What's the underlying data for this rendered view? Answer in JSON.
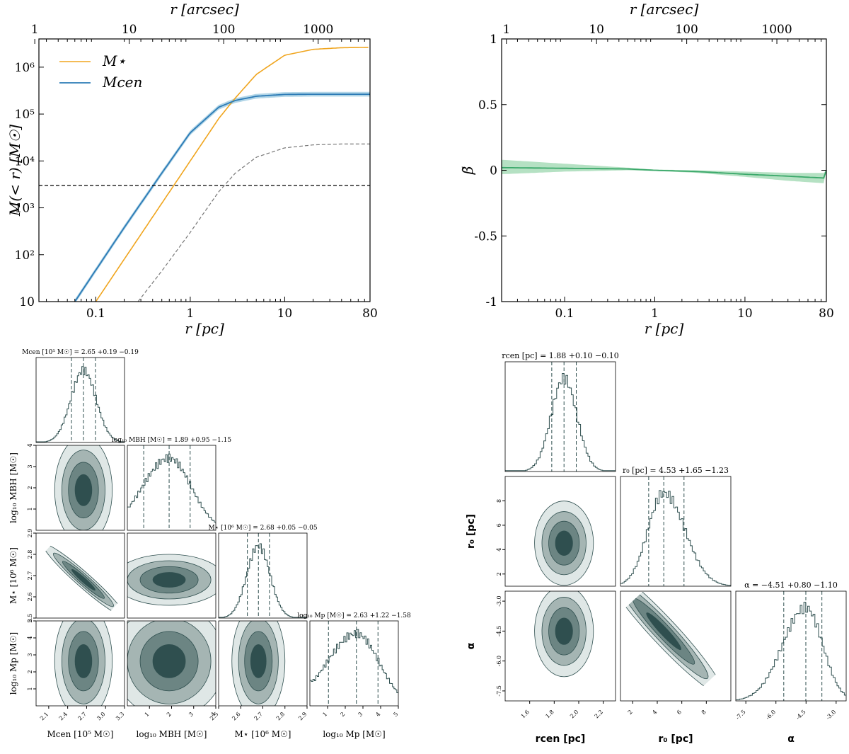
{
  "colors": {
    "stellar": "#f0a51e",
    "central": "#2c7bb6",
    "central_band": "#9ecae1",
    "beta_line": "#3aa86a",
    "beta_band": "#a8dcb9",
    "corner_dark": "#2f4f4f",
    "corner_fill": [
      "#dfe7e6",
      "#a5b5b3",
      "#6c8583",
      "#2f4f4f"
    ]
  },
  "chart_data": [
    {
      "id": "mass_profile",
      "type": "line",
      "xlabel": "r [pc]",
      "xlabel_top": "r [arcsec]",
      "ylabel": "M(< r) [M☉]",
      "xscale": "log",
      "yscale": "log",
      "xlim": [
        0.025,
        80
      ],
      "ylim": [
        10,
        4000000
      ],
      "x_ticks": [
        "0.1",
        "1",
        "10",
        "80"
      ],
      "x_tick_values": [
        0.1,
        1,
        10,
        80
      ],
      "top_ticks": [
        "1",
        "10",
        "100",
        "1000"
      ],
      "top_tick_values_pc": [
        0.0226,
        0.226,
        2.26,
        22.6
      ],
      "y_ticks": [
        "10",
        "10²",
        "10³",
        "10⁴",
        "10⁵",
        "10⁶"
      ],
      "y_tick_values": [
        10,
        100,
        1000,
        10000,
        100000,
        1000000
      ],
      "legend": [
        "M⋆",
        "Mcen"
      ],
      "legend_position": "top-left",
      "series": [
        {
          "name": "M⋆",
          "x": [
            0.1,
            0.2,
            0.5,
            1,
            2,
            3,
            5,
            10,
            20,
            40,
            80
          ],
          "y": [
            10,
            80,
            1250,
            10000,
            80000,
            220000,
            700000,
            1800000,
            2400000,
            2600000,
            2650000
          ]
        },
        {
          "name": "Mcen",
          "x": [
            0.06,
            0.1,
            0.2,
            0.5,
            1,
            2,
            3,
            5,
            10,
            20,
            40,
            80
          ],
          "y": [
            10,
            47,
            380,
            5500,
            40000,
            140000,
            195000,
            240000,
            262000,
            265000,
            265000,
            265000
          ]
        },
        {
          "name": "M_BH",
          "x": [
            0.025,
            80
          ],
          "y": [
            3000,
            3000
          ]
        },
        {
          "name": "M_p",
          "x": [
            0.28,
            0.5,
            1,
            2,
            3,
            5,
            10,
            20,
            40,
            80
          ],
          "y": [
            10,
            45,
            300,
            2200,
            5500,
            12000,
            19000,
            22000,
            23000,
            23000
          ]
        }
      ]
    },
    {
      "id": "anisotropy",
      "type": "line",
      "xlabel": "r [pc]",
      "xlabel_top": "r [arcsec]",
      "ylabel": "β̃",
      "xscale": "log",
      "xlim": [
        0.02,
        80
      ],
      "ylim": [
        -1,
        1
      ],
      "x_ticks": [
        "0.1",
        "1",
        "10",
        "80"
      ],
      "x_tick_values": [
        0.1,
        1,
        10,
        80
      ],
      "top_ticks": [
        "1",
        "10",
        "100",
        "1000"
      ],
      "top_tick_values_pc": [
        0.0226,
        0.226,
        2.26,
        22.6
      ],
      "y_ticks": [
        "1",
        "0.5",
        "0",
        "-0.5",
        "-1"
      ],
      "y_tick_values": [
        1,
        0.5,
        0,
        -0.5,
        -1
      ],
      "series": [
        {
          "name": "beta",
          "x": [
            0.02,
            0.1,
            0.5,
            1,
            3,
            10,
            30,
            80
          ],
          "y": [
            0.02,
            0.015,
            0.01,
            0.0,
            -0.01,
            -0.03,
            -0.045,
            -0.06
          ],
          "band_lo": [
            -0.03,
            -0.01,
            0.0,
            -0.005,
            -0.02,
            -0.05,
            -0.08,
            -0.1
          ],
          "band_hi": [
            0.08,
            0.05,
            0.02,
            0.005,
            0.0,
            -0.01,
            -0.02,
            -0.02
          ]
        }
      ]
    },
    {
      "id": "corner_left",
      "type": "corner",
      "parameters": [
        {
          "name": "M_cen",
          "label": "Mcen [10⁵ M☉]",
          "range": [
            1.9,
            3.3
          ],
          "ticks": [
            "2.1",
            "2.4",
            "2.7",
            "3.0",
            "3.3"
          ],
          "tick_values": [
            2.1,
            2.4,
            2.7,
            3.0,
            3.3
          ],
          "title": "Mcen [10⁵ M☉] = 2.65 +0.19 −0.19",
          "quantiles": [
            2.46,
            2.65,
            2.84
          ],
          "median": 2.65
        },
        {
          "name": "logMBH",
          "label": "log₁₀ MBH [M☉]",
          "range": [
            0,
            4
          ],
          "ticks": [
            "1",
            "2",
            "3",
            "4"
          ],
          "tick_values": [
            1,
            2,
            3,
            4
          ],
          "title": "log₁₀ MBH [M☉] = 1.89 +0.95 −1.15",
          "quantiles": [
            0.74,
            1.89,
            2.84
          ],
          "median": 1.89
        },
        {
          "name": "M_star",
          "label": "M⋆ [10⁶ M☉]",
          "range": [
            2.5,
            2.9
          ],
          "ticks": [
            "2.5",
            "2.6",
            "2.7",
            "2.8",
            "2.9"
          ],
          "tick_values": [
            2.5,
            2.6,
            2.7,
            2.8,
            2.9
          ],
          "title": "M⋆ [10⁶ M☉] = 2.68 +0.05 −0.05",
          "quantiles": [
            2.63,
            2.68,
            2.73
          ],
          "median": 2.68
        },
        {
          "name": "logMp",
          "label": "log₁₀ Mp [M☉]",
          "range": [
            0,
            5
          ],
          "ticks": [
            "1",
            "2",
            "3",
            "4",
            "5"
          ],
          "tick_values": [
            1,
            2,
            3,
            4,
            5
          ],
          "title": "log₁₀ Mp [M☉] = 2.63 +1.22 −1.58",
          "quantiles": [
            1.05,
            2.63,
            3.85
          ],
          "median": 2.63
        }
      ]
    },
    {
      "id": "corner_right",
      "type": "corner",
      "parameters": [
        {
          "name": "r_cen",
          "label": "rcen [pc]",
          "range": [
            1.4,
            2.3
          ],
          "ticks": [
            "1.6",
            "1.8",
            "2.0",
            "2.2"
          ],
          "tick_values": [
            1.6,
            1.8,
            2.0,
            2.2
          ],
          "title": "rcen [pc] = 1.88 +0.10 −0.10",
          "quantiles": [
            1.78,
            1.88,
            1.98
          ],
          "median": 1.88
        },
        {
          "name": "r0",
          "label": "r₀ [pc]",
          "range": [
            1,
            10
          ],
          "ticks": [
            "2",
            "4",
            "6",
            "8"
          ],
          "tick_values": [
            2,
            4,
            6,
            8
          ],
          "title": "r₀ [pc] = 4.53 +1.65 −1.23",
          "quantiles": [
            3.3,
            4.53,
            6.18
          ],
          "median": 4.53
        },
        {
          "name": "alpha",
          "label": "α",
          "range": [
            -8,
            -2.5
          ],
          "ticks": [
            "-7.5",
            "-6.0",
            "-4.5",
            "-3.0"
          ],
          "tick_values": [
            -7.5,
            -6.0,
            -4.5,
            -3.0
          ],
          "title": "α = −4.51 +0.80 −1.10",
          "quantiles": [
            -5.61,
            -4.51,
            -3.71
          ],
          "median": -4.51
        }
      ]
    }
  ]
}
